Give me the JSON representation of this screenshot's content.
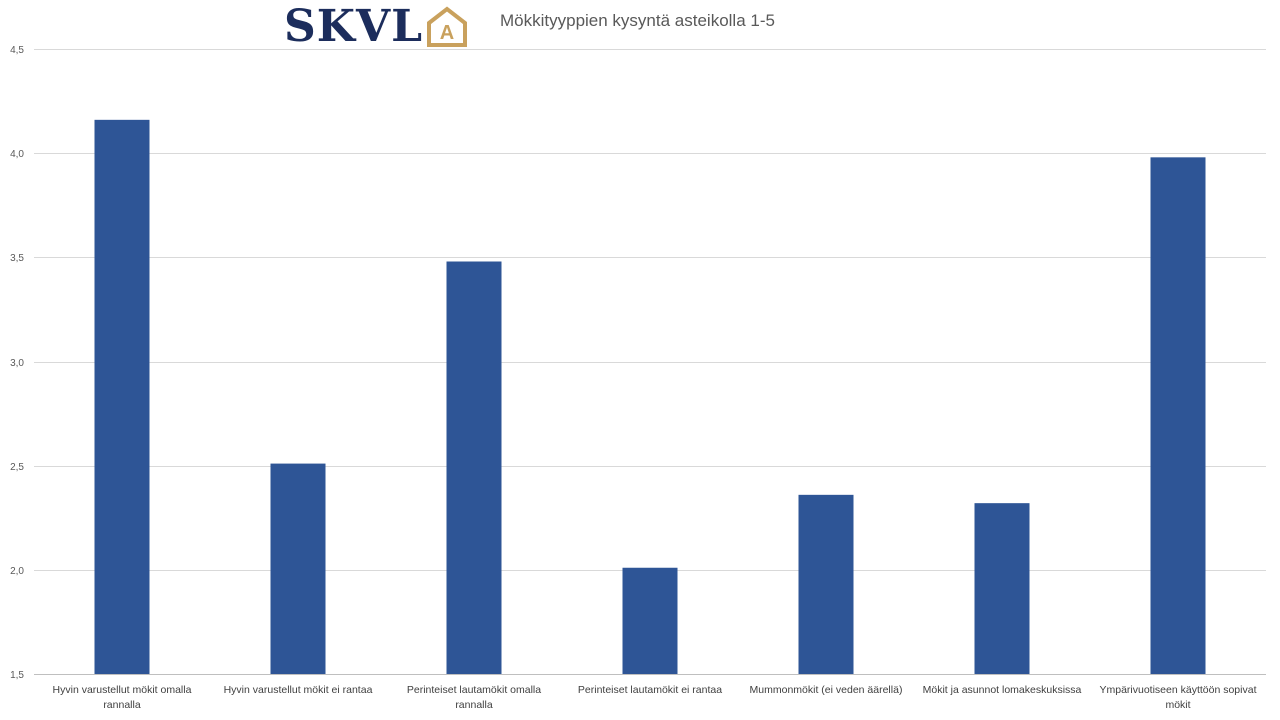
{
  "logo": {
    "text": "SKVL",
    "mark_letter": "A",
    "text_color": "#1c2d5c",
    "mark_color": "#c9a15d"
  },
  "chart_data": {
    "type": "bar",
    "title": "Mökkityyppien kysyntä asteikolla 1-5",
    "xlabel": "",
    "ylabel": "",
    "ylim": [
      1.5,
      4.5
    ],
    "yticks": [
      "1,5",
      "2,0",
      "2,5",
      "3,0",
      "3,5",
      "4,0",
      "4,5"
    ],
    "ytick_values": [
      1.5,
      2.0,
      2.5,
      3.0,
      3.5,
      4.0,
      4.5
    ],
    "grid": true,
    "legend": "none",
    "bar_color": "#2e5596",
    "categories": [
      [
        "Hyvin varustellut mökit omalla",
        "rannalla"
      ],
      [
        "Hyvin varustellut mökit ei rantaa"
      ],
      [
        "Perinteiset lautamökit omalla",
        "rannalla"
      ],
      [
        "Perinteiset lautamökit ei rantaa"
      ],
      [
        "Mummonmökit (ei veden äärellä)"
      ],
      [
        "Mökit ja asunnot lomakeskuksissa"
      ],
      [
        "Ympärivuotiseen käyttöön sopivat",
        "mökit"
      ]
    ],
    "values": [
      4.16,
      2.51,
      3.48,
      2.01,
      2.36,
      2.32,
      3.98
    ]
  }
}
